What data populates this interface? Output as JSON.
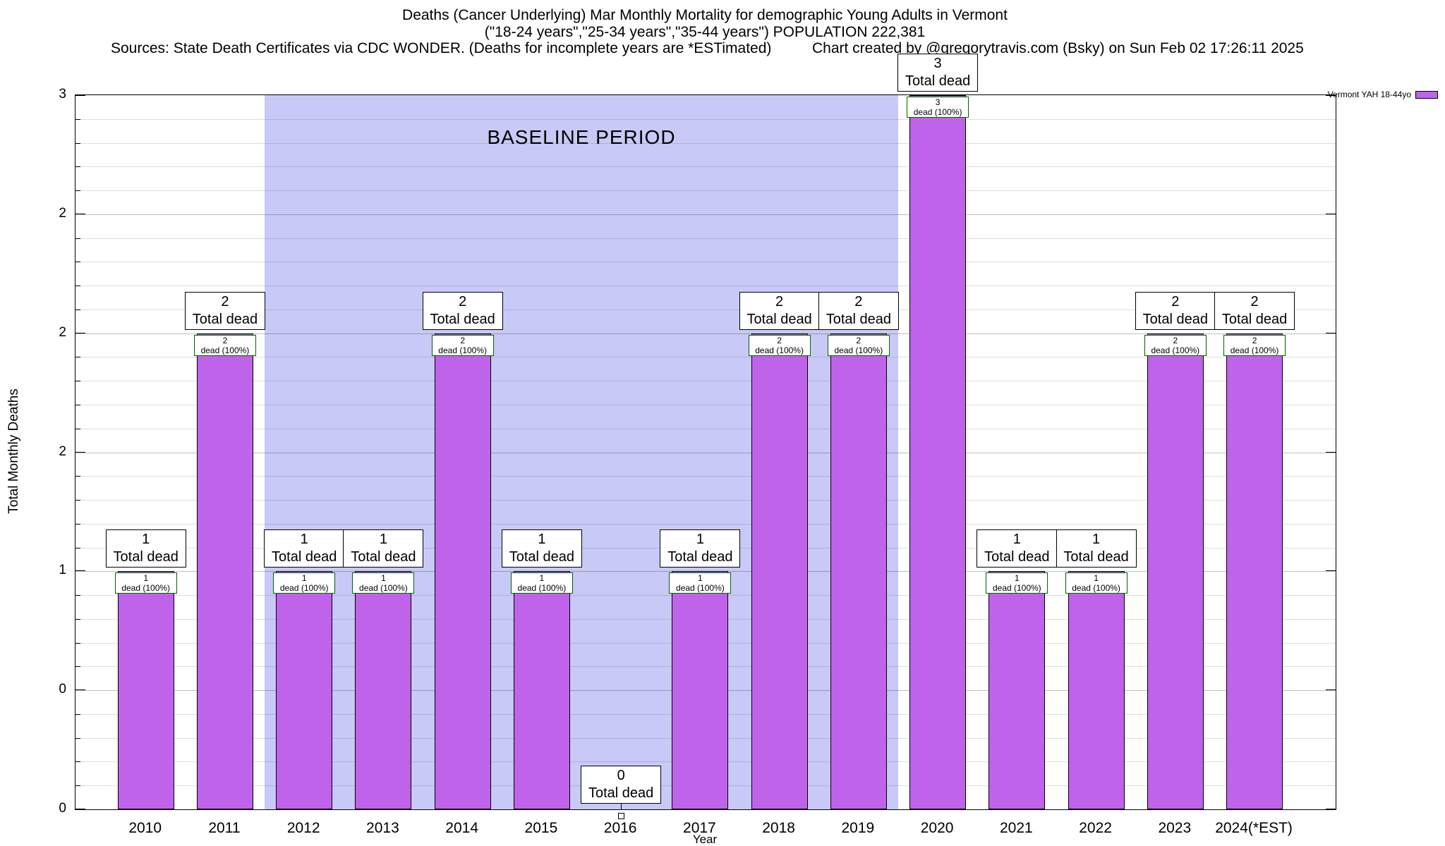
{
  "titles": {
    "line1": "Deaths (Cancer Underlying) Mar Monthly Mortality for demographic Young Adults in Vermont",
    "line2": "(\"18-24 years\",\"25-34 years\",\"35-44 years\") POPULATION 222,381",
    "sources": "Sources: State Death Certificates via CDC WONDER. (Deaths for incomplete years are *ESTimated)",
    "credit": "Chart created by @gregorytravis.com (Bsky) on Sun Feb 02 17:26:11 2025"
  },
  "chart_data": {
    "type": "bar",
    "title": "Deaths (Cancer Underlying) Mar Monthly Mortality for demographic Young Adults in Vermont",
    "subtitle": "(\"18-24 years\",\"25-34 years\",\"35-44 years\") POPULATION 222,381",
    "xlabel": "Year",
    "ylabel": "Total Monthly Deaths",
    "ylim": [
      0,
      3
    ],
    "grid": true,
    "yticks": [
      {
        "v": 0.0,
        "label": "0"
      },
      {
        "v": 0.5,
        "label": "0"
      },
      {
        "v": 1.0,
        "label": "1"
      },
      {
        "v": 1.5,
        "label": "2"
      },
      {
        "v": 2.0,
        "label": "2"
      },
      {
        "v": 2.5,
        "label": "2"
      },
      {
        "v": 3.0,
        "label": "3"
      }
    ],
    "categories": [
      "2010",
      "2011",
      "2012",
      "2013",
      "2014",
      "2015",
      "2016",
      "2017",
      "2018",
      "2019",
      "2020",
      "2021",
      "2022",
      "2023",
      "2024(*EST)"
    ],
    "values": [
      1,
      2,
      1,
      1,
      2,
      1,
      0,
      1,
      2,
      2,
      3,
      1,
      1,
      2,
      2
    ],
    "bar_color": "#bf63ea",
    "bar_top_label": "Total dead",
    "bar_inner_label": "dead (100%)",
    "baseline": {
      "label": "BASELINE PERIOD",
      "start_category": "2012",
      "end_category": "2019",
      "color": "#c9c9f7"
    },
    "legend": [
      {
        "label": "Vermont YAH 18-44yo",
        "color": "#bf63ea"
      }
    ],
    "legend_position": "top-right"
  }
}
